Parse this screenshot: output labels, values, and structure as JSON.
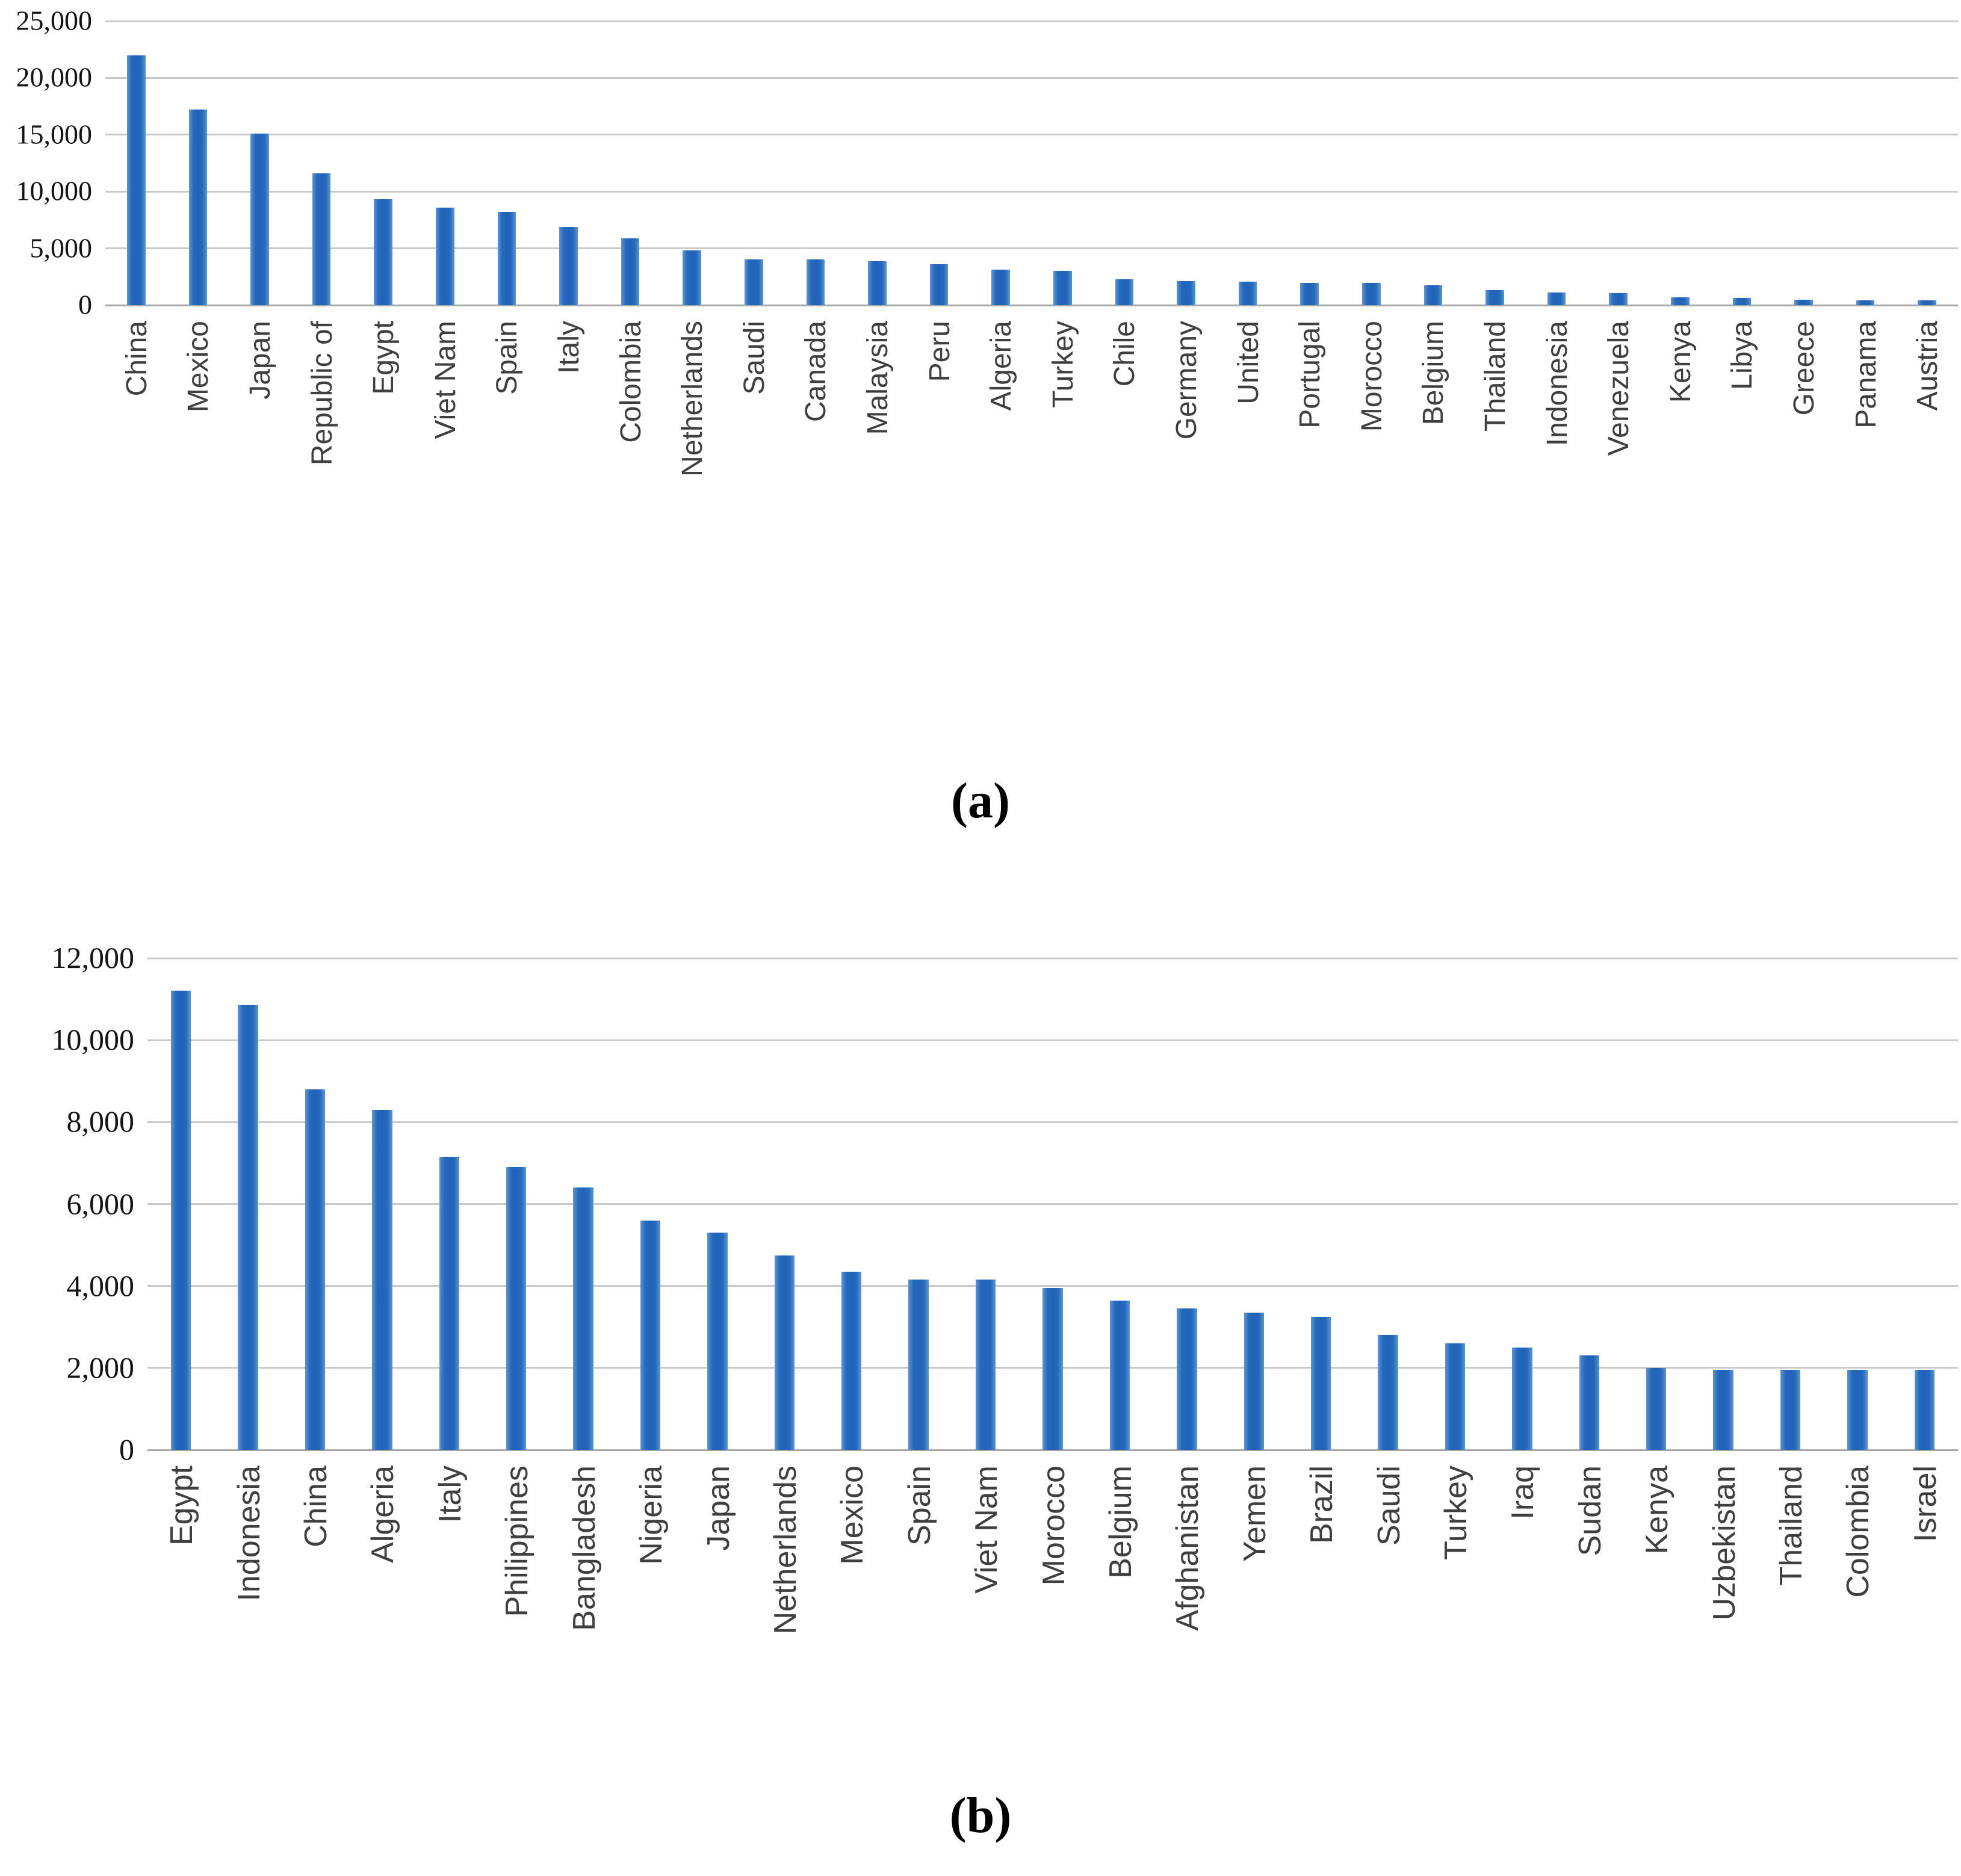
{
  "chart_data": [
    {
      "id": "a",
      "type": "bar",
      "title": "",
      "xlabel": "",
      "ylabel": "",
      "caption": "(a)",
      "ylim": [
        0,
        25000
      ],
      "grid": true,
      "legend": false,
      "bar_color": "#2a6fbe",
      "gridline_color": "#c9c9c9",
      "ytick_values": [
        0,
        5000,
        10000,
        15000,
        20000,
        25000
      ],
      "ytick_labels": [
        "0",
        "5,000",
        "10,000",
        "15,000",
        "20,000",
        "25,000"
      ],
      "categories": [
        "China",
        "Mexico",
        "Japan",
        "Republic of",
        "Egypt",
        "Viet Nam",
        "Spain",
        "Italy",
        "Colombia",
        "Netherlands",
        "Saudi",
        "Canada",
        "Malaysia",
        "Peru",
        "Algeria",
        "Turkey",
        "Chile",
        "Germany",
        "United",
        "Portugal",
        "Morocco",
        "Belgium",
        "Thailand",
        "Indonesia",
        "Venezuela",
        "Kenya",
        "Libya",
        "Greece",
        "Panama",
        "Austria"
      ],
      "values": [
        22000,
        17200,
        15100,
        11600,
        9300,
        8600,
        8200,
        6900,
        5900,
        4800,
        4000,
        4000,
        3850,
        3600,
        3150,
        3000,
        2300,
        2100,
        2050,
        1950,
        1950,
        1750,
        1300,
        1100,
        1050,
        700,
        650,
        480,
        430,
        450
      ]
    },
    {
      "id": "b",
      "type": "bar",
      "title": "",
      "xlabel": "",
      "ylabel": "",
      "caption": "(b)",
      "ylim": [
        0,
        12000
      ],
      "grid": true,
      "legend": false,
      "bar_color": "#2a6fbe",
      "gridline_color": "#c9c9c9",
      "ytick_values": [
        0,
        2000,
        4000,
        6000,
        8000,
        10000,
        12000
      ],
      "ytick_labels": [
        "0",
        "2,000",
        "4,000",
        "6,000",
        "8,000",
        "10,000",
        "12,000"
      ],
      "categories": [
        "Egypt",
        "Indonesia",
        "China",
        "Algeria",
        "Italy",
        "Philippines",
        "Bangladesh",
        "Nigeria",
        "Japan",
        "Netherlands",
        "Mexico",
        "Spain",
        "Viet Nam",
        "Morocco",
        "Belgium",
        "Afghanistan",
        "Yemen",
        "Brazil",
        "Saudi",
        "Turkey",
        "Iraq",
        "Sudan",
        "Kenya",
        "Uzbekistan",
        "Thailand",
        "Colombia",
        "Israel"
      ],
      "values": [
        11200,
        10850,
        8800,
        8300,
        7150,
        6900,
        6400,
        5600,
        5300,
        4750,
        4350,
        4150,
        4150,
        3950,
        3650,
        3450,
        3350,
        3250,
        2800,
        2600,
        2500,
        2300,
        2000,
        1950,
        1950,
        1950,
        1950
      ]
    }
  ]
}
